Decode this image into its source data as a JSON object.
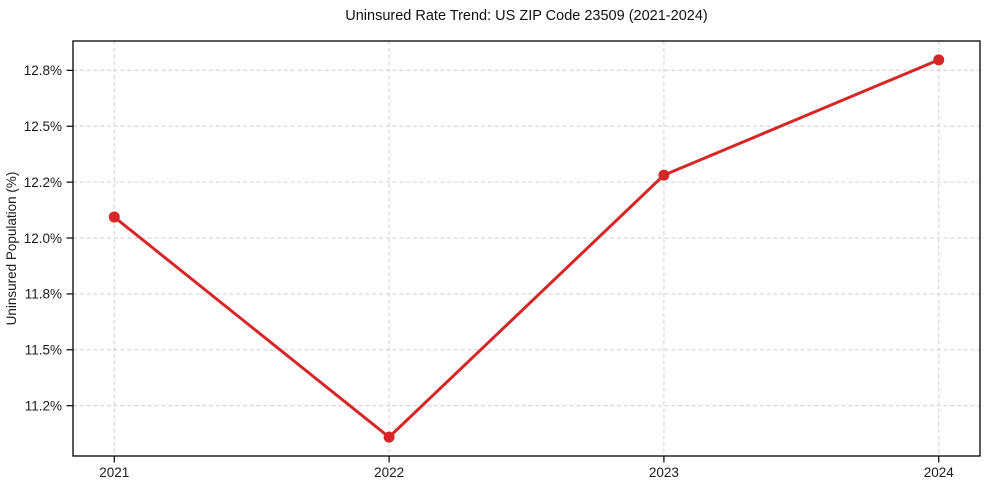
{
  "figure": {
    "background": "#ffffff"
  },
  "chart_data": {
    "type": "line",
    "title": "Uninsured Rate Trend: US ZIP Code 23509 (2021-2024)",
    "xlabel": "",
    "ylabel": "Uninsured Population (%)",
    "x": [
      2021,
      2022,
      2023,
      2024
    ],
    "x_tick_labels": [
      "2021",
      "2022",
      "2023",
      "2024"
    ],
    "values": [
      12.1,
      11.05,
      12.3,
      12.85
    ],
    "y_ticks": [
      11.2,
      11.5,
      11.8,
      12.0,
      12.2,
      12.5,
      12.8
    ],
    "y_tick_labels": [
      "11.2%",
      "11.5%",
      "11.8%",
      "12.0%",
      "12.2%",
      "12.5%",
      "12.8%"
    ],
    "ylim": [
      10.96,
      12.94
    ],
    "grid": true,
    "grid_style": "dashed",
    "legend": false,
    "marker": "circle",
    "line_color": "#d62728",
    "marker_color": "#d62728",
    "grid_color": "#d4d4d4",
    "axis_color": "#000000",
    "text_color": "#1c1c1c"
  }
}
